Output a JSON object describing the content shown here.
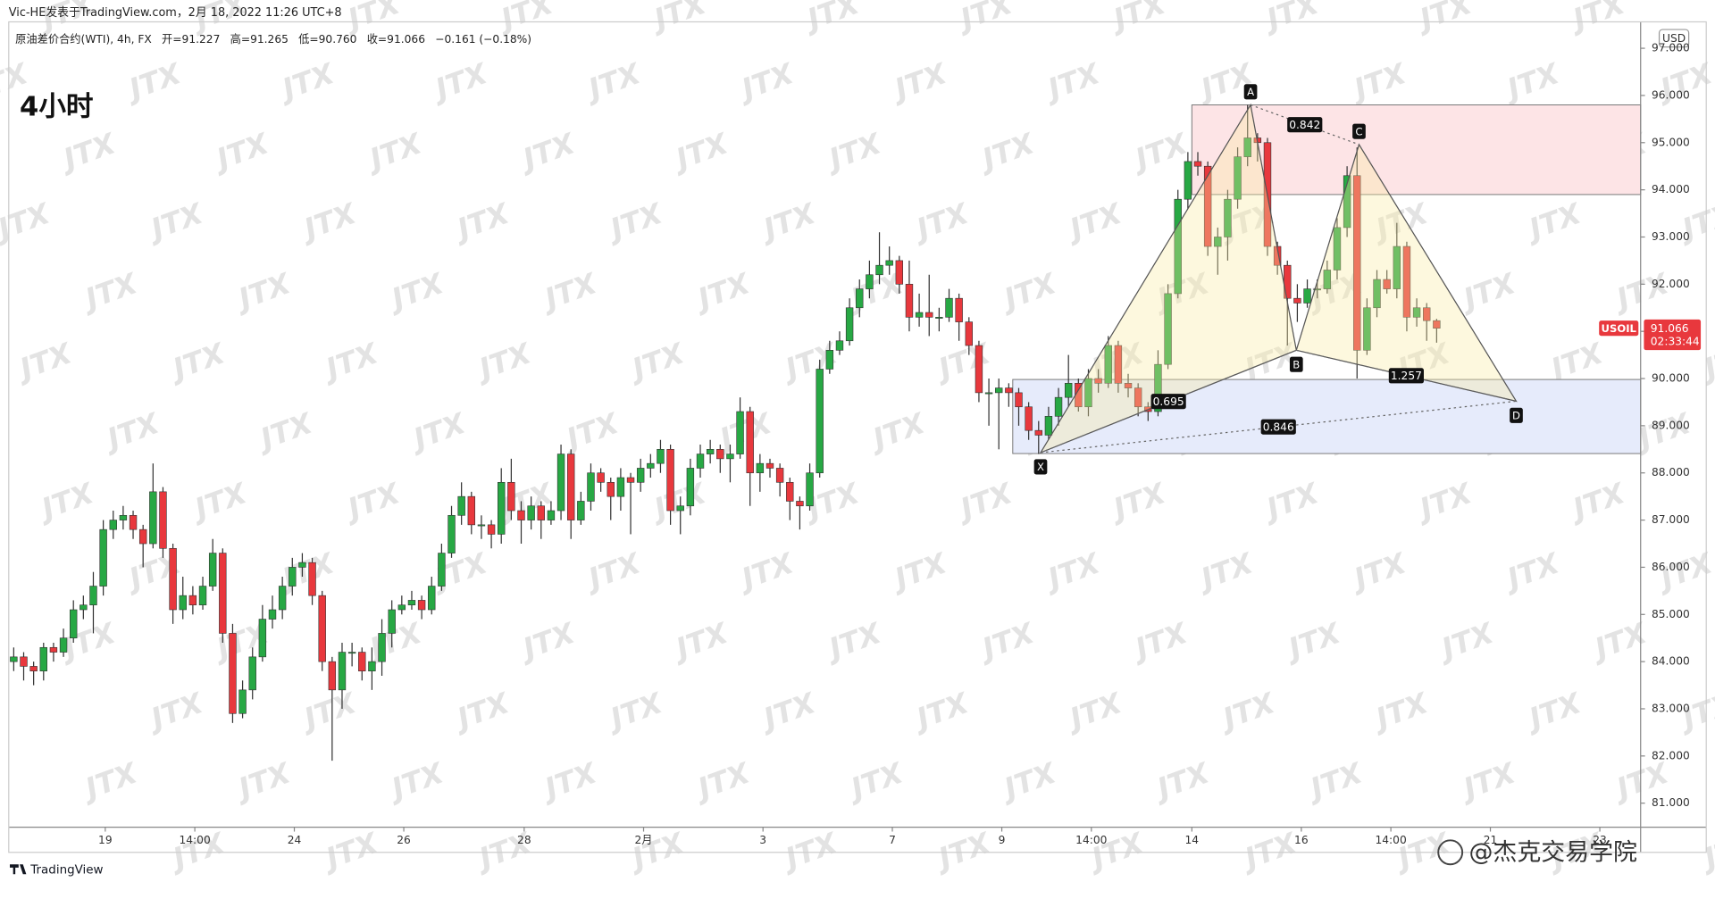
{
  "header": "Vic-HE发表于TradingView.com，2月 18, 2022 11:26 UTC+8",
  "timeframe": "4小时",
  "legend": {
    "symbol": "原油差价合约(WTI), 4h, FX",
    "open": "开=91.227",
    "high": "高=91.265",
    "low": "低=90.760",
    "close": "收=91.066",
    "change": "−0.161 (−0.18%)"
  },
  "currency": "USD",
  "ticker": "USOIL",
  "countdown": "02:33:44",
  "watermark": "JTX",
  "footer_logo": "TradingView",
  "footer_credit": "@杰克交易学院",
  "chart_data": {
    "type": "candlestick",
    "up_color": "#27a844",
    "down_color": "#e8383d",
    "xlim": [
      -0.5,
      163.5
    ],
    "ylim": [
      80.49,
      97.56
    ],
    "xticks": [
      {
        "value": 9.2,
        "label": "19"
      },
      {
        "value": 18.2,
        "label": "14:00"
      },
      {
        "value": 28.2,
        "label": "24"
      },
      {
        "value": 39.2,
        "label": "26"
      },
      {
        "value": 51.3,
        "label": "28"
      },
      {
        "value": 63.3,
        "label": "2月"
      },
      {
        "value": 75.3,
        "label": "3"
      },
      {
        "value": 88.3,
        "label": "7"
      },
      {
        "value": 99.3,
        "label": "9"
      },
      {
        "value": 108.3,
        "label": "14:00"
      },
      {
        "value": 118.4,
        "label": "14"
      },
      {
        "value": 129.4,
        "label": "16"
      },
      {
        "value": 138.4,
        "label": "14:00"
      },
      {
        "value": 148.4,
        "label": "21"
      },
      {
        "value": 159.4,
        "label": "23"
      }
    ],
    "yticks": [
      {
        "value": 81,
        "label": "81.000"
      },
      {
        "value": 82,
        "label": "82.000"
      },
      {
        "value": 83,
        "label": "83.000"
      },
      {
        "value": 84,
        "label": "84.000"
      },
      {
        "value": 85,
        "label": "85.000"
      },
      {
        "value": 86,
        "label": "86.000"
      },
      {
        "value": 87,
        "label": "87.000"
      },
      {
        "value": 88,
        "label": "88.000"
      },
      {
        "value": 89,
        "label": "89.000"
      },
      {
        "value": 90,
        "label": "90.000"
      },
      {
        "value": 91,
        "label": "91.000"
      },
      {
        "value": 92,
        "label": "92.000"
      },
      {
        "value": 93,
        "label": "93.000"
      },
      {
        "value": 94,
        "label": "94.000"
      },
      {
        "value": 95,
        "label": "95.000"
      },
      {
        "value": 96,
        "label": "96.000"
      },
      {
        "value": 97,
        "label": "97.000"
      }
    ],
    "open": [
      84.0,
      84.1,
      83.9,
      83.8,
      84.3,
      84.2,
      84.5,
      85.1,
      85.2,
      85.6,
      86.8,
      87.0,
      87.1,
      86.8,
      86.5,
      87.6,
      86.4,
      85.1,
      85.4,
      85.2,
      85.6,
      86.3,
      84.6,
      82.9,
      83.4,
      84.1,
      84.9,
      85.1,
      85.6,
      86.0,
      86.1,
      85.4,
      84.0,
      83.4,
      84.2,
      84.2,
      83.8,
      84.0,
      84.6,
      85.1,
      85.2,
      85.3,
      85.1,
      85.6,
      86.3,
      87.1,
      87.5,
      86.9,
      86.9,
      86.7,
      87.8,
      87.2,
      87.0,
      87.3,
      87.0,
      87.2,
      88.4,
      87.0,
      87.4,
      88.0,
      87.8,
      87.5,
      87.9,
      87.8,
      88.1,
      88.2,
      88.5,
      87.2,
      87.3,
      88.1,
      88.4,
      88.5,
      88.3,
      88.4,
      89.3,
      88.0,
      88.2,
      88.1,
      87.8,
      87.4,
      87.3,
      88.0,
      90.2,
      90.6,
      90.8,
      91.5,
      91.9,
      92.2,
      92.4,
      92.5,
      92.0,
      91.3,
      91.4,
      91.3,
      91.3,
      91.7,
      91.2,
      90.7,
      89.7,
      89.7,
      89.8,
      89.7,
      89.4,
      88.9,
      88.8,
      89.2,
      89.6,
      89.9,
      89.4,
      90.0,
      89.9,
      90.7,
      89.9,
      89.8,
      89.4,
      89.3,
      90.3,
      91.8,
      93.8,
      94.6,
      94.5,
      92.8,
      93.0,
      93.8,
      94.7,
      95.1,
      95.0,
      92.8,
      92.4,
      91.7,
      91.6,
      91.9,
      91.9,
      92.3,
      93.2,
      94.3,
      90.6,
      91.5,
      92.1,
      91.9,
      92.8,
      91.3,
      91.5,
      91.227
    ],
    "high": [
      84.3,
      84.2,
      84.0,
      84.4,
      84.4,
      84.7,
      85.3,
      85.4,
      85.9,
      87.0,
      87.2,
      87.3,
      87.2,
      86.9,
      88.2,
      87.7,
      86.5,
      85.8,
      85.6,
      85.8,
      86.6,
      86.4,
      84.8,
      83.6,
      84.3,
      85.2,
      85.4,
      85.8,
      86.2,
      86.3,
      86.2,
      85.5,
      84.1,
      84.4,
      84.4,
      84.3,
      84.3,
      84.9,
      85.3,
      85.4,
      85.5,
      85.4,
      85.8,
      86.5,
      87.3,
      87.8,
      87.6,
      87.1,
      87.0,
      88.1,
      88.3,
      87.4,
      87.5,
      87.4,
      87.4,
      88.6,
      88.5,
      87.6,
      88.2,
      88.1,
      87.9,
      88.1,
      88.0,
      88.3,
      88.4,
      88.7,
      88.6,
      87.5,
      88.3,
      88.6,
      88.7,
      88.6,
      88.6,
      89.6,
      89.4,
      88.4,
      88.3,
      88.2,
      87.9,
      87.5,
      88.2,
      90.4,
      90.8,
      91.0,
      91.7,
      92.1,
      92.5,
      93.1,
      92.8,
      92.6,
      92.5,
      91.8,
      92.2,
      91.5,
      91.9,
      91.8,
      91.3,
      90.8,
      90.0,
      90.0,
      89.9,
      89.8,
      89.5,
      89.1,
      89.4,
      89.8,
      90.5,
      90.0,
      90.2,
      90.2,
      90.9,
      90.8,
      90.1,
      89.9,
      89.5,
      90.6,
      92.0,
      94.0,
      94.8,
      94.8,
      94.6,
      93.2,
      94.0,
      94.9,
      95.8,
      95.2,
      95.1,
      92.9,
      92.5,
      92.0,
      92.1,
      92.1,
      92.5,
      93.4,
      94.5,
      94.9,
      91.7,
      92.3,
      92.3,
      93.3,
      92.9,
      91.7,
      91.6,
      91.265
    ],
    "low": [
      83.8,
      83.6,
      83.5,
      83.6,
      84.0,
      84.1,
      84.4,
      84.9,
      84.6,
      85.4,
      86.6,
      86.8,
      86.6,
      86.0,
      86.4,
      86.2,
      84.8,
      84.9,
      85.0,
      85.1,
      85.5,
      84.4,
      82.7,
      82.8,
      83.2,
      84.0,
      84.7,
      84.9,
      85.4,
      85.8,
      85.2,
      83.8,
      81.9,
      83.0,
      83.9,
      83.6,
      83.4,
      83.7,
      84.3,
      85.0,
      85.1,
      84.9,
      85.0,
      85.5,
      86.2,
      86.9,
      86.7,
      86.6,
      86.4,
      86.5,
      87.0,
      86.5,
      86.8,
      86.6,
      86.9,
      87.0,
      86.6,
      86.9,
      87.2,
      87.6,
      87.0,
      87.2,
      86.7,
      87.6,
      87.9,
      88.0,
      86.9,
      86.7,
      87.1,
      87.9,
      88.2,
      88.0,
      87.8,
      88.3,
      87.3,
      87.6,
      87.9,
      87.5,
      87.0,
      86.8,
      87.2,
      87.9,
      90.1,
      90.5,
      90.7,
      91.3,
      91.7,
      92.0,
      92.2,
      91.8,
      91.0,
      91.1,
      90.9,
      91.0,
      91.2,
      90.8,
      90.5,
      89.5,
      89.0,
      88.5,
      89.4,
      89.0,
      88.7,
      88.4,
      88.7,
      89.0,
      89.4,
      89.3,
      89.2,
      89.7,
      89.8,
      89.7,
      89.6,
      89.2,
      89.1,
      89.2,
      90.2,
      91.7,
      93.6,
      94.3,
      92.6,
      92.2,
      92.5,
      93.6,
      94.5,
      94.6,
      92.6,
      92.2,
      90.7,
      91.2,
      91.5,
      91.7,
      91.8,
      92.1,
      93.0,
      90.0,
      90.5,
      91.3,
      91.8,
      91.7,
      91.0,
      91.1,
      90.8,
      90.76
    ],
    "close": [
      84.1,
      83.9,
      83.8,
      84.3,
      84.2,
      84.5,
      85.1,
      85.2,
      85.6,
      86.8,
      87.0,
      87.1,
      86.8,
      86.5,
      87.6,
      86.4,
      85.1,
      85.4,
      85.2,
      85.6,
      86.3,
      84.6,
      82.9,
      83.4,
      84.1,
      84.9,
      85.1,
      85.6,
      86.0,
      86.1,
      85.4,
      84.0,
      83.4,
      84.2,
      84.2,
      83.8,
      84.0,
      84.6,
      85.1,
      85.2,
      85.3,
      85.1,
      85.6,
      86.3,
      87.1,
      87.5,
      86.9,
      86.9,
      86.7,
      87.8,
      87.2,
      87.0,
      87.3,
      87.0,
      87.2,
      88.4,
      87.0,
      87.4,
      88.0,
      87.8,
      87.5,
      87.9,
      87.8,
      88.1,
      88.2,
      88.5,
      87.2,
      87.3,
      88.1,
      88.4,
      88.5,
      88.3,
      88.4,
      89.3,
      88.0,
      88.2,
      88.1,
      87.8,
      87.4,
      87.3,
      88.0,
      90.2,
      90.6,
      90.8,
      91.5,
      91.9,
      92.2,
      92.4,
      92.5,
      92.0,
      91.3,
      91.4,
      91.3,
      91.3,
      91.7,
      91.2,
      90.7,
      89.7,
      89.7,
      89.8,
      89.7,
      89.4,
      88.9,
      88.8,
      89.2,
      89.6,
      89.9,
      89.4,
      90.0,
      89.9,
      90.7,
      89.9,
      89.8,
      89.4,
      89.3,
      90.3,
      91.8,
      93.8,
      94.6,
      94.5,
      92.8,
      93.0,
      93.8,
      94.7,
      95.1,
      95.0,
      92.8,
      92.4,
      91.7,
      91.6,
      91.9,
      91.9,
      92.3,
      93.2,
      94.3,
      90.6,
      91.5,
      92.1,
      91.9,
      92.8,
      91.3,
      91.5,
      91.227,
      91.066
    ],
    "zones": [
      {
        "x": [
          118.4,
          163.5
        ],
        "y": [
          93.9,
          95.8
        ],
        "color": "#fde4e6"
      },
      {
        "x": [
          100.4,
          163.5
        ],
        "y": [
          88.41,
          89.98
        ],
        "color": "#e6ebfb"
      }
    ],
    "pattern": {
      "points": [
        {
          "label": "X",
          "x": 103.2,
          "y": 88.43
        },
        {
          "label": "A",
          "x": 124.3,
          "y": 95.8
        },
        {
          "label": "B",
          "x": 128.9,
          "y": 90.6
        },
        {
          "label": "C",
          "x": 135.2,
          "y": 94.96
        },
        {
          "label": "D",
          "x": 151.0,
          "y": 89.52
        }
      ],
      "ratios": [
        0.842,
        0.695,
        1.257,
        0.846
      ]
    }
  }
}
